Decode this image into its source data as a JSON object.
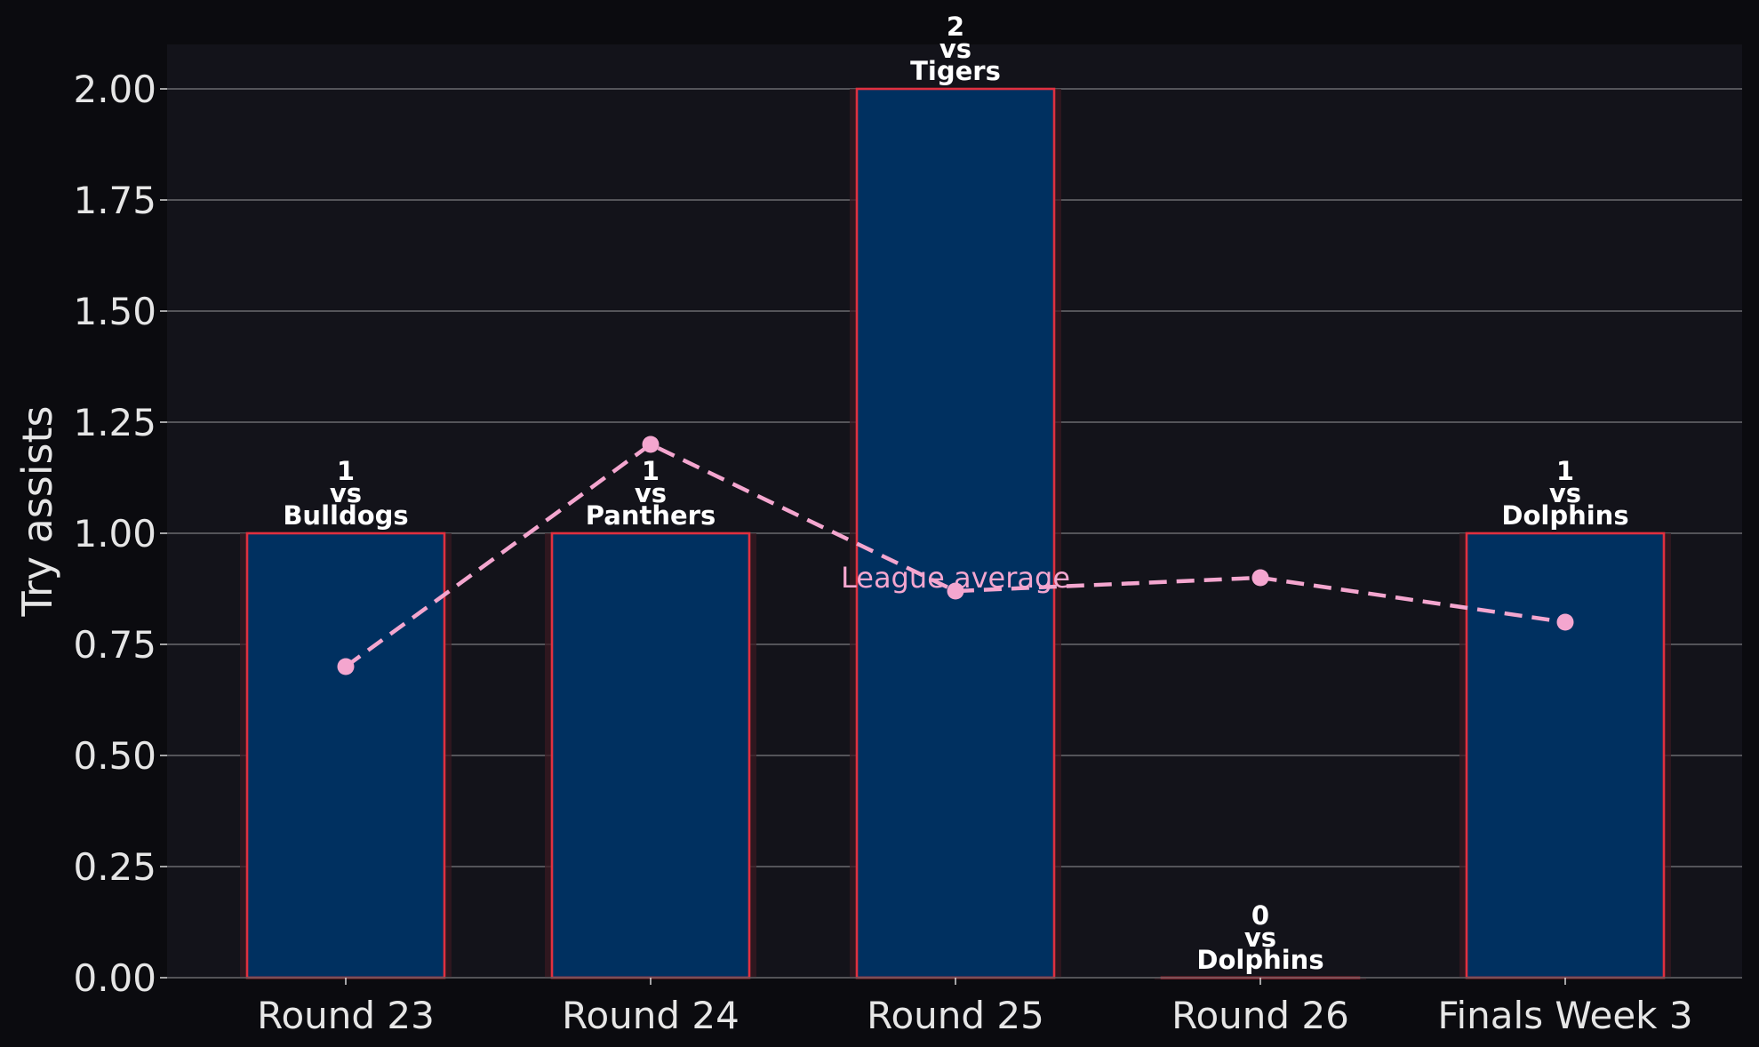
{
  "chart_data": {
    "type": "bar",
    "title": "",
    "xlabel": "",
    "ylabel": "Try assists",
    "ylim": [
      0,
      2.1
    ],
    "yticks": [
      0,
      0.25,
      0.5,
      0.75,
      1.0,
      1.25,
      1.5,
      1.75,
      2.0
    ],
    "ytick_labels": [
      "0.00",
      "0.25",
      "0.50",
      "0.75",
      "1.00",
      "1.25",
      "1.50",
      "1.75",
      "2.00"
    ],
    "grid": "horizontal",
    "categories": [
      "Round 23",
      "Round 24",
      "Round 25",
      "Round 26",
      "Finals Week 3"
    ],
    "series": [
      {
        "type": "bar",
        "values": [
          1,
          1,
          2,
          0,
          1
        ],
        "value_labels": [
          "1",
          "1",
          "2",
          "0",
          "1"
        ],
        "opponents": [
          "Bulldogs",
          "Panthers",
          "Tigers",
          "Dolphins",
          "Dolphins"
        ],
        "vs_label": "vs",
        "color": "#003060",
        "edge_color": "#e03040"
      },
      {
        "type": "line",
        "name": "League average",
        "values": [
          0.7,
          1.2,
          0.87,
          0.9,
          0.8
        ],
        "color": "#f4a6cf",
        "style": "dashed"
      }
    ],
    "annotations": [
      {
        "text": "League average",
        "category_index": 2,
        "y": 0.9,
        "color": "#f4a6cf"
      }
    ],
    "colors": {
      "figure_bg": "#0b0b0f",
      "plot_bg": "#13131a",
      "grid": "#6a6a6e",
      "tick_text": "#e6e6e6",
      "label_text": "#ffffff"
    }
  }
}
